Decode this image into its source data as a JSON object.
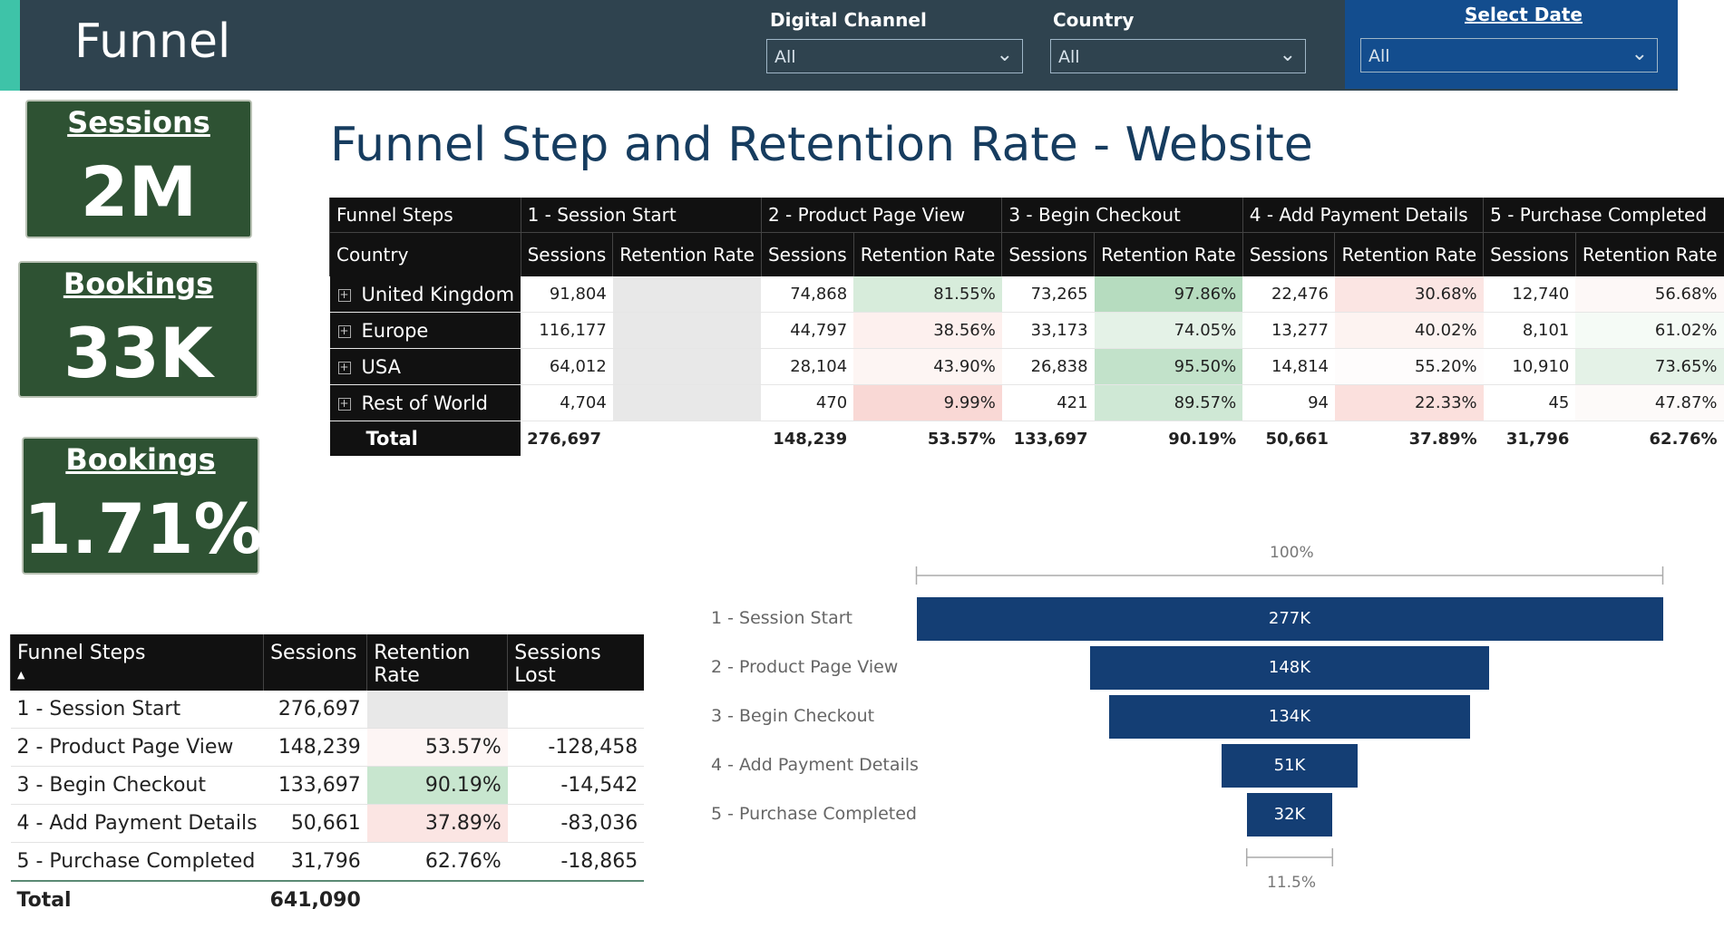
{
  "header": {
    "title": "Funnel",
    "filters": [
      {
        "label": "Digital Channel",
        "value": "All"
      },
      {
        "label": "Country",
        "value": "All"
      }
    ],
    "date_filter": {
      "label": "Select Date",
      "value": "All"
    }
  },
  "kpis": [
    {
      "title": "Sessions",
      "value": "2M"
    },
    {
      "title": "Bookings",
      "value": "33K"
    },
    {
      "title": "Bookings",
      "value": "1.71%"
    }
  ],
  "main_title": "Funnel Step and Retention Rate - Website",
  "matrix": {
    "corner_top": "Funnel Steps",
    "corner_bottom": "Country",
    "steps": [
      "1 - Session Start",
      "2 - Product Page View",
      "3 - Begin Checkout",
      "4 - Add Payment Details",
      "5 - Purchase Completed"
    ],
    "sub_headers": {
      "sessions": "Sessions",
      "rate": "Retention Rate"
    },
    "rows": [
      {
        "country": "United Kingdom",
        "cells": [
          "91,804",
          "",
          "74,868",
          "81.55%",
          "73,265",
          "97.86%",
          "22,476",
          "30.68%",
          "12,740",
          "56.68%"
        ]
      },
      {
        "country": "Europe",
        "cells": [
          "116,177",
          "",
          "44,797",
          "38.56%",
          "33,173",
          "74.05%",
          "13,277",
          "40.02%",
          "8,101",
          "61.02%"
        ]
      },
      {
        "country": "USA",
        "cells": [
          "64,012",
          "",
          "28,104",
          "43.90%",
          "26,838",
          "95.50%",
          "14,814",
          "55.20%",
          "10,910",
          "73.65%"
        ]
      },
      {
        "country": "Rest of World",
        "cells": [
          "4,704",
          "",
          "470",
          "9.99%",
          "421",
          "89.57%",
          "94",
          "22.33%",
          "45",
          "47.87%"
        ]
      }
    ],
    "total": {
      "label": "Total",
      "cells": [
        "276,697",
        "",
        "148,239",
        "53.57%",
        "133,697",
        "90.19%",
        "50,661",
        "37.89%",
        "31,796",
        "62.76%"
      ]
    },
    "shades": [
      [
        "none",
        "grey",
        "none",
        "#d7ecdb",
        "none",
        "#b6dcbf",
        "none",
        "#fbe5e3",
        "none",
        "#fdf8f7"
      ],
      [
        "none",
        "grey",
        "none",
        "#fdf0ee",
        "none",
        "#e4f2e7",
        "none",
        "#fdf3f1",
        "none",
        "#f5fbf6"
      ],
      [
        "none",
        "grey",
        "none",
        "#fdf5f3",
        "none",
        "#c2e2ca",
        "none",
        "#fefcfc",
        "none",
        "#e4f2e7"
      ],
      [
        "none",
        "grey",
        "none",
        "#f9d8d5",
        "none",
        "#cfe8d5",
        "none",
        "#fbe0dd",
        "none",
        "#fdfaf9"
      ]
    ]
  },
  "summary": {
    "headers": [
      "Funnel Steps",
      "Sessions",
      "Retention Rate",
      "Sessions Lost"
    ],
    "rows": [
      {
        "step": "1 - Session Start",
        "sessions": "276,697",
        "rate": "",
        "lost": ""
      },
      {
        "step": "2 - Product Page View",
        "sessions": "148,239",
        "rate": "53.57%",
        "lost": "-128,458"
      },
      {
        "step": "3 - Begin Checkout",
        "sessions": "133,697",
        "rate": "90.19%",
        "lost": "-14,542"
      },
      {
        "step": "4 - Add Payment Details",
        "sessions": "50,661",
        "rate": "37.89%",
        "lost": "-83,036"
      },
      {
        "step": "5 - Purchase Completed",
        "sessions": "31,796",
        "rate": "62.76%",
        "lost": "-18,865"
      }
    ],
    "rate_shades": [
      "#e8e8e8",
      "#fdf5f4",
      "#c8e6cf",
      "#fbe5e3",
      "#ffffff"
    ],
    "total": {
      "label": "Total",
      "sessions": "641,090"
    }
  },
  "funnel": {
    "top_label": "100%",
    "bottom_label": "11.5%",
    "steps": [
      {
        "label": "1 - Session Start",
        "display": "277K",
        "value": 276697
      },
      {
        "label": "2 - Product Page View",
        "display": "148K",
        "value": 148239
      },
      {
        "label": "3 - Begin Checkout",
        "display": "134K",
        "value": 133697
      },
      {
        "label": "4 - Add Payment Details",
        "display": "51K",
        "value": 50661
      },
      {
        "label": "5 - Purchase Completed",
        "display": "32K",
        "value": 31796
      }
    ]
  }
}
